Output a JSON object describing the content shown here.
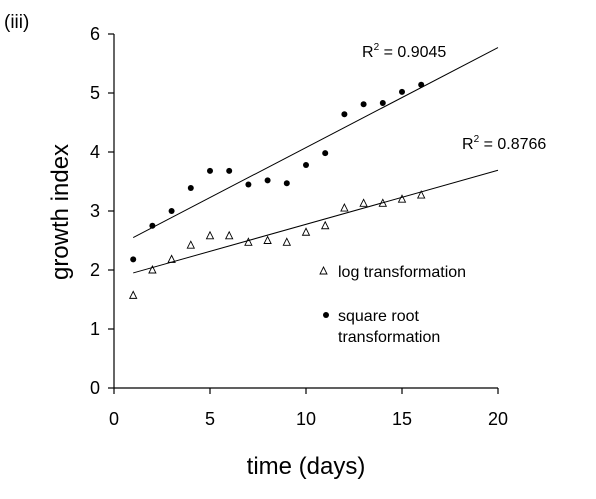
{
  "panel_label": "(iii)",
  "chart_data": {
    "type": "scatter",
    "xlabel": "time (days)",
    "ylabel": "growth index",
    "xlim": [
      0,
      20
    ],
    "ylim": [
      0,
      6
    ],
    "xticks": [
      "0",
      "5",
      "10",
      "15",
      "20"
    ],
    "yticks": [
      "0",
      "1",
      "2",
      "3",
      "4",
      "5",
      "6"
    ],
    "grid": false,
    "legend_position": "right",
    "series": [
      {
        "name": "log transformation",
        "marker": "triangle-open",
        "x": [
          1,
          2,
          3,
          4,
          5,
          6,
          7,
          8,
          9,
          10,
          11,
          12,
          13,
          14,
          15,
          16
        ],
        "y": [
          1.57,
          2.0,
          2.18,
          2.42,
          2.58,
          2.58,
          2.47,
          2.5,
          2.47,
          2.64,
          2.75,
          3.05,
          3.13,
          3.13,
          3.2,
          3.27
        ],
        "trendline": {
          "x": [
            1,
            20
          ],
          "y": [
            1.95,
            3.69
          ],
          "r2_label": "R",
          "r2_sup": "2",
          "r2_value": " = 0.8766"
        }
      },
      {
        "name": "square root transformation",
        "name_lines": [
          "square root",
          "transformation"
        ],
        "marker": "circle-filled",
        "x": [
          1,
          2,
          3,
          4,
          5,
          6,
          7,
          8,
          9,
          10,
          11,
          12,
          13,
          14,
          15,
          16
        ],
        "y": [
          2.18,
          2.75,
          3.0,
          3.39,
          3.68,
          3.68,
          3.45,
          3.52,
          3.47,
          3.78,
          3.98,
          4.64,
          4.81,
          4.83,
          5.02,
          5.14
        ],
        "trendline": {
          "x": [
            1,
            20
          ],
          "y": [
            2.55,
            5.77
          ],
          "r2_label": "R",
          "r2_sup": "2",
          "r2_value": " = 0.9045"
        }
      }
    ],
    "colors": {
      "marks": "#000000",
      "background": "#ffffff"
    }
  }
}
